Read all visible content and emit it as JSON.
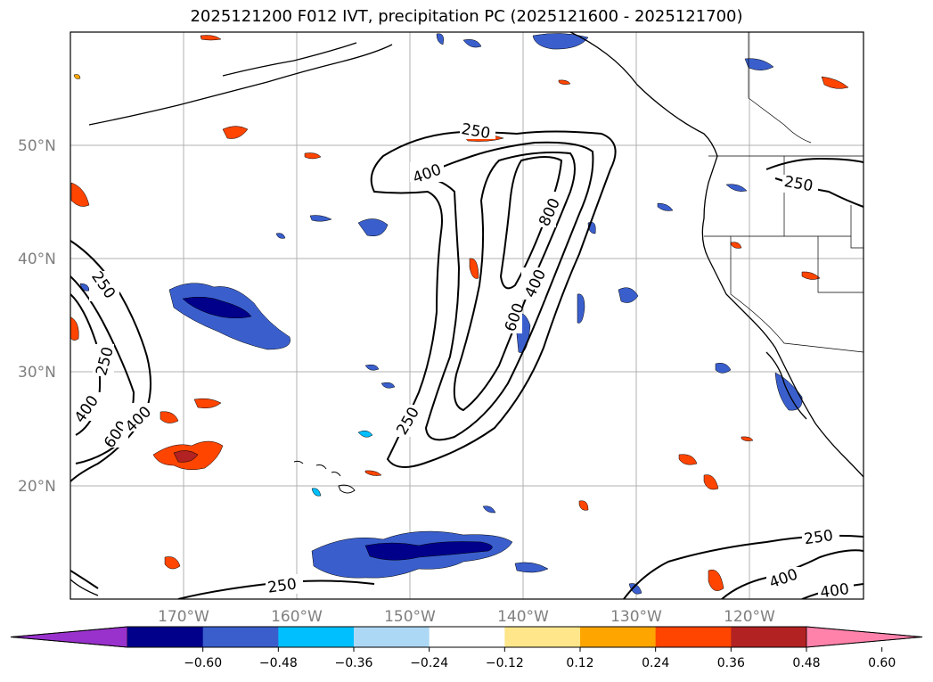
{
  "title": "2025121200 F012 IVT, precipitation PC (2025121600 - 2025121700)",
  "lat_labels": [
    "50°N",
    "40°N",
    "30°N",
    "20°N"
  ],
  "lon_labels": [
    "170°W",
    "160°W",
    "150°W",
    "140°W",
    "130°W",
    "120°W"
  ],
  "colorbar": {
    "ticks": [
      "−0.60",
      "−0.48",
      "−0.36",
      "−0.24",
      "−0.12",
      "0.12",
      "0.24",
      "0.36",
      "0.48",
      "0.60"
    ],
    "colors": [
      "#9932cc",
      "#00008b",
      "#3a5fcd",
      "#00bfff",
      "#add8f5",
      "#ffffff",
      "#ffe68a",
      "#ffa500",
      "#ff4500",
      "#b22222",
      "#ff82ab"
    ]
  },
  "contour_labels": {
    "c250_w": "250",
    "c250_w2": "250",
    "c400_w": "400",
    "c600_w": "600",
    "c400_w2": "400",
    "c250_top": "250",
    "c400_top": "400",
    "c800": "800",
    "c400_c": "400",
    "c600_c": "600",
    "c250_c": "250",
    "c250_ne": "250",
    "c250_se": "250",
    "c400_se": "400",
    "c400_se2": "400",
    "c250_s": "250"
  }
}
